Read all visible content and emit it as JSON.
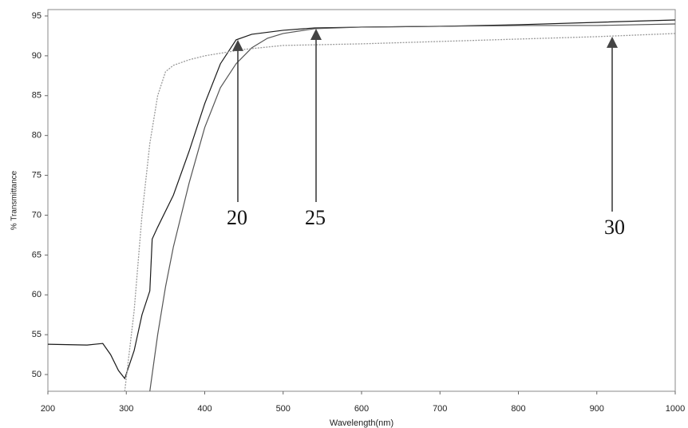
{
  "chart_data": {
    "type": "line",
    "x_label": "Wavelength(nm)",
    "y_label": "% Transmittance",
    "xlim": [
      200,
      1000
    ],
    "xticks": [
      200,
      300,
      400,
      500,
      600,
      700,
      800,
      900,
      1000
    ],
    "ylim": [
      47.9,
      95.8
    ],
    "yticks": [
      50,
      55,
      60,
      65,
      70,
      75,
      80,
      85,
      90,
      95
    ],
    "grid": false,
    "series": [
      {
        "name": "20",
        "color": "#1a1a1a",
        "dash": false,
        "x": [
          200,
          250,
          270,
          280,
          290,
          298,
          310,
          320,
          330,
          333,
          340,
          360,
          380,
          400,
          420,
          440,
          460,
          500,
          540,
          600,
          700,
          800,
          900,
          1000
        ],
        "values": [
          53.8,
          53.7,
          53.9,
          52.5,
          50.5,
          49.5,
          53,
          57.5,
          60.5,
          67,
          68.5,
          72.5,
          78,
          84,
          89,
          92,
          92.7,
          93.2,
          93.5,
          93.6,
          93.7,
          93.9,
          94.2,
          94.5
        ]
      },
      {
        "name": "25",
        "color": "#555555",
        "dash": false,
        "x": [
          330,
          340,
          350,
          360,
          380,
          400,
          420,
          440,
          460,
          480,
          500,
          540,
          600,
          700,
          800,
          900,
          1000
        ],
        "values": [
          47.9,
          55,
          61,
          66,
          74,
          81,
          86,
          89,
          91,
          92.2,
          92.8,
          93.4,
          93.6,
          93.7,
          93.8,
          93.8,
          94
        ]
      },
      {
        "name": "30",
        "color": "#9a9a9a",
        "dash": true,
        "x": [
          298,
          310,
          320,
          330,
          340,
          350,
          360,
          380,
          400,
          450,
          500,
          600,
          700,
          800,
          900,
          1000
        ],
        "values": [
          47.9,
          58,
          70,
          79,
          85,
          88,
          88.8,
          89.5,
          90,
          90.8,
          91.3,
          91.5,
          91.8,
          92.1,
          92.4,
          92.8
        ]
      }
    ]
  }
}
